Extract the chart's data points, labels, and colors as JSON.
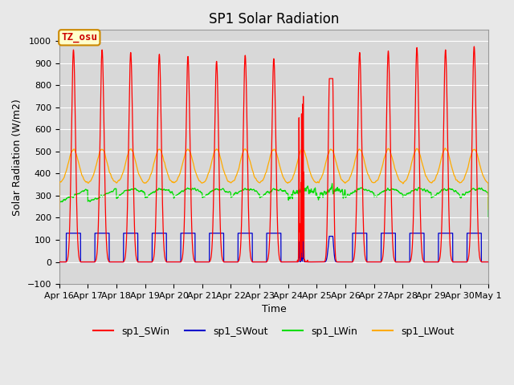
{
  "title": "SP1 Solar Radiation",
  "ylabel": "Solar Radiation (W/m2)",
  "xlabel": "Time",
  "ylim": [
    -100,
    1050
  ],
  "tick_labels": [
    "Apr 16",
    "Apr 17",
    "Apr 18",
    "Apr 19",
    "Apr 20",
    "Apr 21",
    "Apr 22",
    "Apr 23",
    "Apr 24",
    "Apr 25",
    "Apr 26",
    "Apr 27",
    "Apr 28",
    "Apr 29",
    "Apr 30",
    "May 1"
  ],
  "annotation_text": "TZ_osu",
  "annotation_color": "#cc0000",
  "annotation_bg": "#ffffcc",
  "annotation_border": "#cc8800",
  "colors": {
    "sp1_SWin": "#ff0000",
    "sp1_SWout": "#0000cc",
    "sp1_LWin": "#00dd00",
    "sp1_LWout": "#ffaa00"
  },
  "bg_color": "#e8e8e8",
  "plot_bg_color": "#d8d8d8",
  "grid_color": "#ffffff",
  "title_fontsize": 12,
  "axis_fontsize": 9,
  "tick_fontsize": 8,
  "SWin_peaks": [
    960,
    960,
    948,
    940,
    930,
    908,
    935,
    920,
    0,
    0,
    948,
    955,
    970,
    960,
    975
  ],
  "SWout_flat": 130,
  "LWin_base": 300,
  "LWout_base": 355,
  "LWout_day_peak": 510,
  "num_days": 15,
  "pts_per_day": 288
}
